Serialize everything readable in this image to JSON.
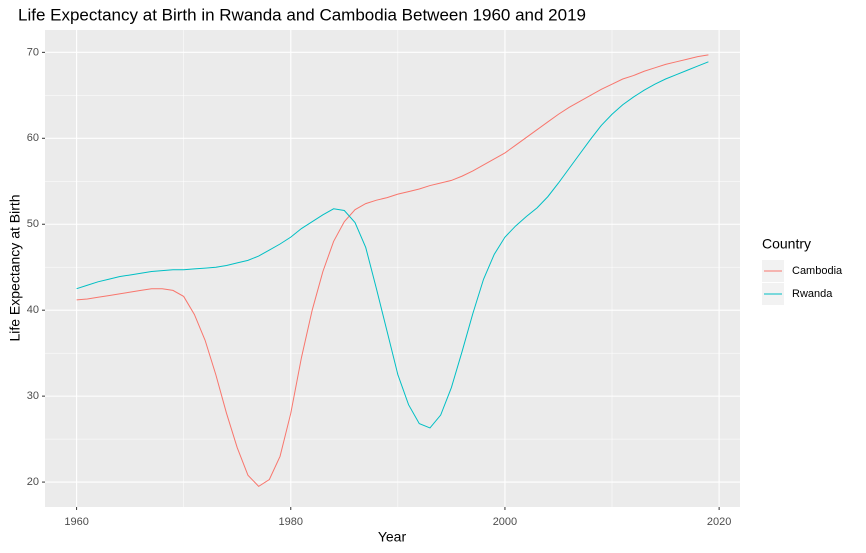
{
  "chart_data": {
    "type": "line",
    "title": "Life Expectancy at Birth in Rwanda and Cambodia Between 1960 and 2019",
    "x_label": "Year",
    "y_label": "Life Expectancy at Birth",
    "legend_title": "Country",
    "legend_position": "right",
    "grid": true,
    "x": [
      1960,
      1961,
      1962,
      1963,
      1964,
      1965,
      1966,
      1967,
      1968,
      1969,
      1970,
      1971,
      1972,
      1973,
      1974,
      1975,
      1976,
      1977,
      1978,
      1979,
      1980,
      1981,
      1982,
      1983,
      1984,
      1985,
      1986,
      1987,
      1988,
      1989,
      1990,
      1991,
      1992,
      1993,
      1994,
      1995,
      1996,
      1997,
      1998,
      1999,
      2000,
      2001,
      2002,
      2003,
      2004,
      2005,
      2006,
      2007,
      2008,
      2009,
      2010,
      2011,
      2012,
      2013,
      2014,
      2015,
      2016,
      2017,
      2018,
      2019
    ],
    "series": [
      {
        "name": "Cambodia",
        "color": "#F8766D",
        "values": [
          41.2,
          41.3,
          41.5,
          41.7,
          41.9,
          42.1,
          42.3,
          42.5,
          42.5,
          42.3,
          41.6,
          39.5,
          36.5,
          32.5,
          28,
          24,
          20.8,
          19.5,
          20.3,
          23,
          28,
          34.5,
          40,
          44.5,
          48,
          50.3,
          51.7,
          52.4,
          52.8,
          53.1,
          53.5,
          53.8,
          54.1,
          54.5,
          54.8,
          55.1,
          55.6,
          56.2,
          56.9,
          57.6,
          58.3,
          59.2,
          60.1,
          61,
          61.9,
          62.8,
          63.6,
          64.3,
          65,
          65.7,
          66.3,
          66.9,
          67.3,
          67.8,
          68.2,
          68.6,
          68.9,
          69.2,
          69.5,
          69.7
        ]
      },
      {
        "name": "Rwanda",
        "color": "#00BFC4",
        "values": [
          42.5,
          42.9,
          43.3,
          43.6,
          43.9,
          44.1,
          44.3,
          44.5,
          44.6,
          44.7,
          44.7,
          44.8,
          44.9,
          45,
          45.2,
          45.5,
          45.8,
          46.3,
          47,
          47.7,
          48.5,
          49.5,
          50.3,
          51.1,
          51.8,
          51.6,
          50.2,
          47.3,
          42.5,
          37.5,
          32.5,
          29,
          26.8,
          26.3,
          27.8,
          31,
          35.2,
          39.6,
          43.6,
          46.5,
          48.5,
          49.8,
          50.9,
          51.9,
          53.2,
          54.8,
          56.5,
          58.2,
          59.9,
          61.5,
          62.8,
          63.9,
          64.8,
          65.6,
          66.3,
          66.9,
          67.4,
          67.9,
          68.4,
          68.9
        ]
      }
    ],
    "xlim": [
      1957.05,
      2021.95
    ],
    "xticks": [
      1960,
      1980,
      2000,
      2020
    ],
    "ylim": [
      17.1,
      72.6
    ],
    "yticks": [
      20,
      30,
      40,
      50,
      60,
      70
    ]
  }
}
